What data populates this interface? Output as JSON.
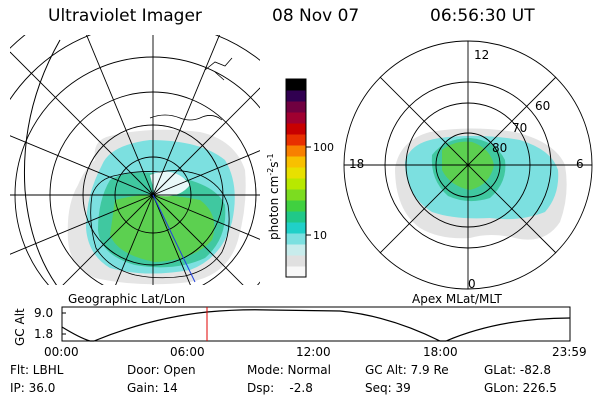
{
  "header": {
    "instrument": "Ultraviolet Imager",
    "date": "08 Nov 07",
    "time": "06:56:30 UT"
  },
  "geo_panel": {
    "label": "Geographic Lat/Lon"
  },
  "apex_panel": {
    "label": "Apex MLat/MLT",
    "mlt_labels": [
      "12",
      "6",
      "0",
      "18"
    ],
    "lat_labels": [
      "60",
      "70",
      "80"
    ]
  },
  "colorbar": {
    "unit": "photon cm",
    "unit_exp1": "-2",
    "unit_s": "s",
    "unit_exp2": "-1",
    "ticks": [
      "100",
      "10"
    ],
    "colors": [
      "#f8f8f8",
      "#e0e0e0",
      "#c8ecec",
      "#7ce0e0",
      "#20d0c8",
      "#20c888",
      "#40d040",
      "#7cdc20",
      "#b8e800",
      "#e8e000",
      "#f8c000",
      "#f88000",
      "#e83000",
      "#c80000",
      "#a00030",
      "#700040",
      "#300050",
      "#000000"
    ]
  },
  "altitude_plot": {
    "ylabel": "GC Alt",
    "yticks": [
      "9.0",
      "1.8"
    ],
    "xticks": [
      "00:00",
      "06:00",
      "12:00",
      "18:00",
      "23:59"
    ]
  },
  "info": {
    "row1": {
      "flt": "Flt: LBHL",
      "door": "Door: Open",
      "mode": "Mode: Normal",
      "gcalt": "GC Alt: 7.9 Re",
      "glat": "GLat: -82.8"
    },
    "row2": {
      "ip": "IP: 36.0",
      "gain": "Gain: 14",
      "dsp": "Dsp:    -2.8",
      "seq": "Seq: 39",
      "glon": "GLon: 226.5"
    }
  }
}
